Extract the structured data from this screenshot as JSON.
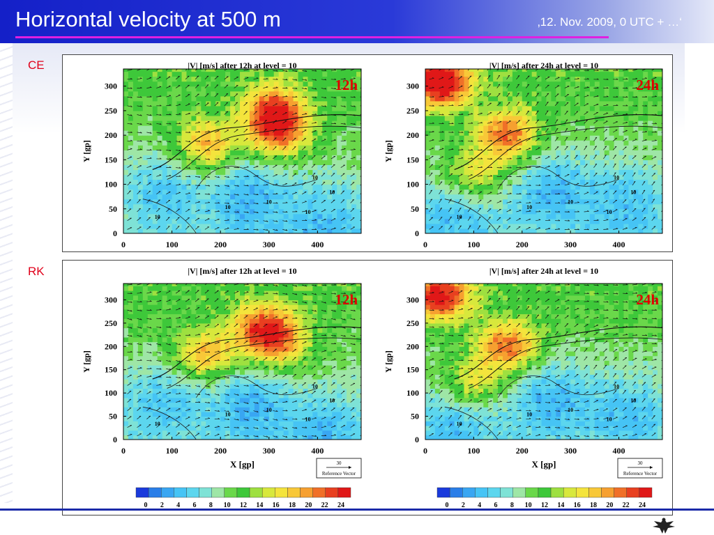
{
  "header": {
    "title": "Horizontal velocity at 500 m",
    "date": "‚12. Nov. 2009, 0 UTC + …‘"
  },
  "rows": {
    "ce": {
      "label": "CE"
    },
    "rk": {
      "label": "RK"
    }
  },
  "colorbar": {
    "ticks": [
      "0",
      "2",
      "4",
      "6",
      "8",
      "10",
      "12",
      "14",
      "16",
      "18",
      "20",
      "22",
      "24"
    ],
    "colors": [
      "#1a3adc",
      "#2a7ee8",
      "#39a6f2",
      "#46c4f5",
      "#5cd6ee",
      "#7ee2d6",
      "#9ee6a6",
      "#6ad84a",
      "#3ec83a",
      "#9ee040",
      "#d8e83c",
      "#f4e43c",
      "#f8c838",
      "#f6a030",
      "#f07028",
      "#e84020",
      "#e01818"
    ]
  },
  "reference_vector": {
    "value": "30",
    "label": "Reference Vector"
  },
  "chart_data": [
    {
      "type": "heatmap",
      "row": "CE",
      "title": "|V| [m/s] after 12h at level = 10",
      "tag": "12h",
      "xlabel": "",
      "ylabel": "Y [gp]",
      "xticks": [
        "0",
        "100",
        "200",
        "300",
        "400"
      ],
      "yticks": [
        "0",
        "50",
        "100",
        "150",
        "200",
        "250",
        "300"
      ],
      "xlim": [
        0,
        490
      ],
      "ylim": [
        0,
        335
      ],
      "contour_label": "10",
      "vector_angle_deg": 15,
      "hot_spots": [
        {
          "x": 310,
          "y": 250,
          "v": 20
        },
        {
          "x": 170,
          "y": 180,
          "v": 18
        },
        {
          "x": 320,
          "y": 200,
          "v": 18
        }
      ],
      "calm_zones": [
        {
          "x": 260,
          "y": 80,
          "v": 4
        },
        {
          "x": 80,
          "y": 90,
          "v": 5
        },
        {
          "x": 420,
          "y": 20,
          "v": 5
        }
      ]
    },
    {
      "type": "heatmap",
      "row": "CE",
      "title": "|V| [m/s] after 24h at level = 10",
      "tag": "24h",
      "xlabel": "",
      "ylabel": "Y [gp]",
      "xticks": [
        "0",
        "100",
        "200",
        "300",
        "400"
      ],
      "yticks": [
        "0",
        "50",
        "100",
        "150",
        "200",
        "250",
        "300"
      ],
      "xlim": [
        0,
        490
      ],
      "ylim": [
        0,
        335
      ],
      "contour_label": "10",
      "vector_angle_deg": 25,
      "hot_spots": [
        {
          "x": 30,
          "y": 310,
          "v": 24
        },
        {
          "x": 170,
          "y": 200,
          "v": 20
        },
        {
          "x": 100,
          "y": 120,
          "v": 16
        }
      ],
      "calm_zones": [
        {
          "x": 260,
          "y": 90,
          "v": 4
        },
        {
          "x": 60,
          "y": 40,
          "v": 5
        },
        {
          "x": 420,
          "y": 60,
          "v": 5
        }
      ]
    },
    {
      "type": "heatmap",
      "row": "RK",
      "title": "|V| [m/s] after 12h at level = 10",
      "tag": "12h",
      "xlabel": "X [gp]",
      "ylabel": "Y [gp]",
      "xticks": [
        "0",
        "100",
        "200",
        "300",
        "400"
      ],
      "yticks": [
        "0",
        "50",
        "100",
        "150",
        "200",
        "250",
        "300"
      ],
      "xlim": [
        0,
        490
      ],
      "ylim": [
        0,
        335
      ],
      "contour_label": "10",
      "vector_angle_deg": 10,
      "hot_spots": [
        {
          "x": 290,
          "y": 240,
          "v": 20
        },
        {
          "x": 170,
          "y": 180,
          "v": 18
        },
        {
          "x": 320,
          "y": 200,
          "v": 16
        }
      ],
      "calm_zones": [
        {
          "x": 260,
          "y": 80,
          "v": 4
        },
        {
          "x": 80,
          "y": 90,
          "v": 5
        },
        {
          "x": 420,
          "y": 20,
          "v": 5
        }
      ]
    },
    {
      "type": "heatmap",
      "row": "RK",
      "title": "|V| [m/s] after 24h at level = 10",
      "tag": "24h",
      "xlabel": "X [gp]",
      "ylabel": "Y [gp]",
      "xticks": [
        "0",
        "100",
        "200",
        "300",
        "400"
      ],
      "yticks": [
        "0",
        "50",
        "100",
        "150",
        "200",
        "250",
        "300"
      ],
      "xlim": [
        0,
        490
      ],
      "ylim": [
        0,
        335
      ],
      "contour_label": "10",
      "vector_angle_deg": 20,
      "hot_spots": [
        {
          "x": 30,
          "y": 310,
          "v": 22
        },
        {
          "x": 170,
          "y": 200,
          "v": 20
        },
        {
          "x": 100,
          "y": 120,
          "v": 16
        }
      ],
      "calm_zones": [
        {
          "x": 260,
          "y": 90,
          "v": 4
        },
        {
          "x": 60,
          "y": 40,
          "v": 5
        },
        {
          "x": 420,
          "y": 60,
          "v": 5
        }
      ]
    }
  ]
}
